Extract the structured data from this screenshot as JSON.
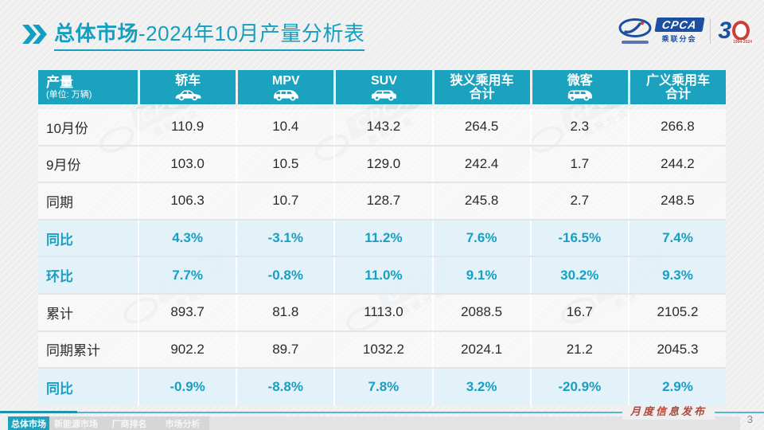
{
  "title": {
    "prefix": "总体市场",
    "suffix": "-2024年10月产量分析表"
  },
  "logo": {
    "cpca": "CPCA",
    "cpca_sub": "乘联分会",
    "anniversary_3": "3",
    "anniversary_years": "1994-2024"
  },
  "watermark": {
    "badge": "CPCA",
    "sub": "乘联分会"
  },
  "table": {
    "corner": {
      "label": "产量",
      "unit": "(单位: 万辆)"
    },
    "columns": [
      {
        "label": "轿车",
        "icon": "sedan-icon"
      },
      {
        "label": "MPV",
        "icon": "mpv-icon"
      },
      {
        "label": "SUV",
        "icon": "suv-icon"
      },
      {
        "label": "狭义乘用车",
        "label2": "合计",
        "icon": ""
      },
      {
        "label": "微客",
        "icon": "microvan-icon"
      },
      {
        "label": "广义乘用车",
        "label2": "合计",
        "icon": ""
      }
    ],
    "rows": [
      {
        "label": "10月份",
        "type": "normal",
        "values": [
          "110.9",
          "10.4",
          "143.2",
          "264.5",
          "2.3",
          "266.8"
        ]
      },
      {
        "label": "9月份",
        "type": "normal",
        "values": [
          "103.0",
          "10.5",
          "129.0",
          "242.4",
          "1.7",
          "244.2"
        ]
      },
      {
        "label": "同期",
        "type": "normal",
        "values": [
          "106.3",
          "10.7",
          "128.7",
          "245.8",
          "2.7",
          "248.5"
        ]
      },
      {
        "label": "同比",
        "type": "percent",
        "values": [
          "4.3%",
          "-3.1%",
          "11.2%",
          "7.6%",
          "-16.5%",
          "7.4%"
        ]
      },
      {
        "label": "环比",
        "type": "percent",
        "values": [
          "7.7%",
          "-0.8%",
          "11.0%",
          "9.1%",
          "30.2%",
          "9.3%"
        ]
      },
      {
        "label": "累计",
        "type": "normal",
        "values": [
          "893.7",
          "81.8",
          "1113.0",
          "2088.5",
          "16.7",
          "2105.2"
        ]
      },
      {
        "label": "同期累计",
        "type": "normal",
        "values": [
          "902.2",
          "89.7",
          "1032.2",
          "2024.1",
          "21.2",
          "2045.3"
        ]
      },
      {
        "label": "同比",
        "type": "percent",
        "values": [
          "-0.9%",
          "-8.8%",
          "7.8%",
          "3.2%",
          "-20.9%",
          "2.9%"
        ]
      }
    ]
  },
  "footer": {
    "tabs": [
      {
        "label": "总体市场",
        "active": true
      },
      {
        "label": "新能源市场",
        "active": false
      },
      {
        "label": "厂商排名",
        "active": false
      },
      {
        "label": "市场分析",
        "active": false
      }
    ],
    "publication": "月度信息发布",
    "page": "3"
  },
  "colors": {
    "teal": "#1ba2be",
    "percent_row_bg": "#e2f1f9",
    "title_teal": "#149fc1",
    "publication_red": "#ad4a3c",
    "logo_blue": "#1c4fa1",
    "anniversary_red": "#cf3e36"
  }
}
